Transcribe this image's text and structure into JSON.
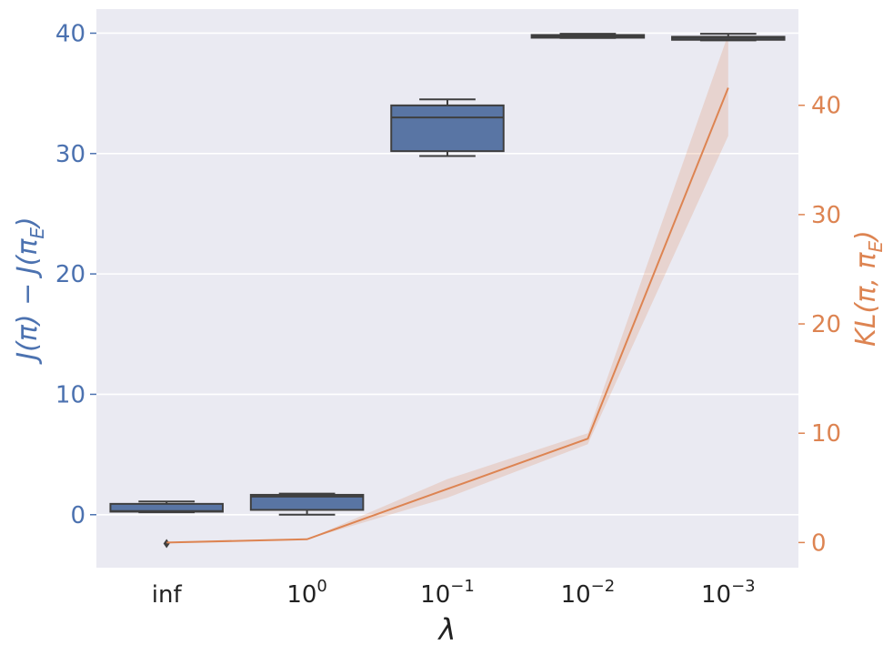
{
  "chart_data": {
    "type": "box",
    "categories": [
      "inf",
      "10^0",
      "10^-1",
      "10^-2",
      "10^-3"
    ],
    "xlabel": "λ",
    "x_tick_labels": [
      {
        "base": "inf",
        "exp": ""
      },
      {
        "base": "10",
        "exp": "0"
      },
      {
        "base": "10",
        "exp": "−1"
      },
      {
        "base": "10",
        "exp": "−2"
      },
      {
        "base": "10",
        "exp": "−3"
      }
    ],
    "left_axis": {
      "label": "J(π) − J(π_E)",
      "label_parts": [
        "J(π) − J(π",
        "E",
        ")"
      ],
      "ylim": [
        -4.4,
        42
      ],
      "ticks": [
        0,
        10,
        20,
        30,
        40
      ],
      "color": "#4c72b0"
    },
    "right_axis": {
      "label": "KL(π, π_E)",
      "label_parts": [
        "KL(π, π",
        "E",
        ")"
      ],
      "ylim": [
        -2.3,
        48.8
      ],
      "ticks": [
        0,
        10,
        20,
        30,
        40
      ],
      "color": "#dd8452"
    },
    "boxes": [
      {
        "category": "inf",
        "whisker_low": 0.2,
        "q1": 0.25,
        "median": 0.3,
        "q3": 0.9,
        "whisker_high": 1.1,
        "outliers": [
          -2.4
        ]
      },
      {
        "category": "10^0",
        "whisker_low": 0.0,
        "q1": 0.4,
        "median": 1.5,
        "q3": 1.65,
        "whisker_high": 1.75,
        "outliers": []
      },
      {
        "category": "10^-1",
        "whisker_low": 29.8,
        "q1": 30.2,
        "median": 33.0,
        "q3": 34.0,
        "whisker_high": 34.5,
        "outliers": []
      },
      {
        "category": "10^-2",
        "whisker_low": 39.6,
        "q1": 39.65,
        "median": 39.75,
        "q3": 39.85,
        "whisker_high": 39.95,
        "outliers": []
      },
      {
        "category": "10^-3",
        "whisker_low": 39.4,
        "q1": 39.45,
        "median": 39.6,
        "q3": 39.7,
        "whisker_high": 39.95,
        "outliers": []
      }
    ],
    "line_series": {
      "axis": "right",
      "mean": [
        0.0,
        0.3,
        4.9,
        9.5,
        41.6
      ],
      "lower": [
        0.0,
        0.3,
        4.1,
        9.0,
        37.2
      ],
      "upper": [
        0.0,
        0.3,
        5.8,
        10.0,
        46.5
      ]
    },
    "grid": true,
    "colors": {
      "background": "#eaeaf2",
      "grid": "#ffffff",
      "box_fill": "#5975a4",
      "box_edge": "#3f3f3f",
      "line": "#dd8452",
      "band": "#dd8452"
    }
  }
}
